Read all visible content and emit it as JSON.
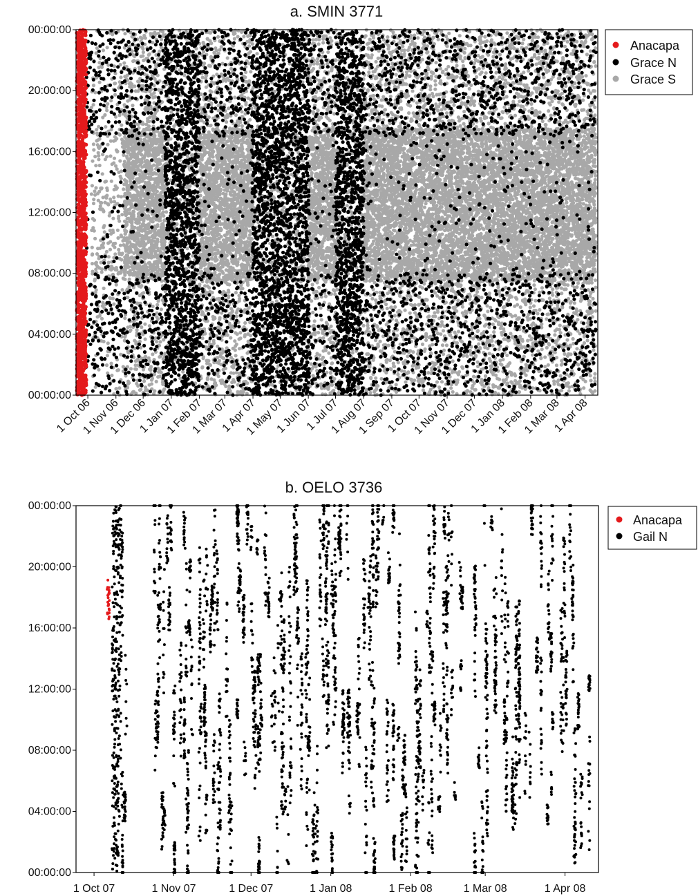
{
  "chart_data": [
    {
      "type": "scatter",
      "title": "a. SMIN 3771",
      "xlabel": "",
      "ylabel": "",
      "x_axis": {
        "type": "date",
        "ticks": [
          "1 Oct 06",
          "1 Nov 06",
          "1 Dec 06",
          "1 Jan 07",
          "1 Feb 07",
          "1 Mar 07",
          "1 Apr 07",
          "1 May 07",
          "1 Jun 07",
          "1 Jul 07",
          "1 Aug 07",
          "1 Sep 07",
          "1 Oct 07",
          "1 Nov 07",
          "1 Dec 07",
          "1 Jan 08",
          "1 Feb 08",
          "1 Mar 08",
          "1 Apr 08"
        ],
        "range": [
          "2006-09-18",
          "2008-04-15"
        ]
      },
      "y_axis": {
        "ticks": [
          "00:00:00",
          "04:00:00",
          "08:00:00",
          "12:00:00",
          "16:00:00",
          "20:00:00",
          "00:00:00"
        ],
        "range_hours": [
          0,
          24
        ]
      },
      "legend": {
        "placement": "right",
        "entries": [
          "Anacapa",
          "Grace N",
          "Grace S"
        ]
      },
      "grid": false,
      "series": [
        {
          "name": "Anacapa",
          "color": "#e41a1c",
          "x_range": [
            "2006-09-19",
            "2006-09-29"
          ],
          "hour_range": [
            0,
            24
          ]
        },
        {
          "name": "Grace N",
          "color": "#000000",
          "x_range": [
            "2006-09-29",
            "2008-04-12"
          ],
          "hour_range": [
            0,
            24
          ],
          "dense_periods": [
            [
              "2006-12-25",
              "2007-01-31"
            ],
            [
              "2007-03-31",
              "2007-06-01"
            ],
            [
              "2007-07-01",
              "2007-07-31"
            ]
          ]
        },
        {
          "name": "Grace S",
          "color": "#a8a8a8",
          "x_range": [
            "2006-10-05",
            "2008-04-12"
          ],
          "hour_range": [
            0,
            24
          ],
          "daytime_band_hours": [
            7.5,
            17.5
          ],
          "dense_periods": [
            [
              "2006-11-10",
              "2006-12-24"
            ],
            [
              "2007-02-01",
              "2007-03-31"
            ],
            [
              "2007-06-01",
              "2007-07-01"
            ],
            [
              "2007-08-01",
              "2008-04-12"
            ]
          ]
        }
      ]
    },
    {
      "type": "scatter",
      "title": "b. OELO 3736",
      "xlabel": "",
      "ylabel": "",
      "x_axis": {
        "type": "date",
        "ticks": [
          "1 Oct 07",
          "1 Nov 07",
          "1 Dec 07",
          "1 Jan 08",
          "1 Feb 08",
          "1 Mar 08",
          "1 Apr 08"
        ],
        "range": [
          "2007-09-24",
          "2008-04-14"
        ]
      },
      "y_axis": {
        "ticks": [
          "00:00:00",
          "04:00:00",
          "08:00:00",
          "12:00:00",
          "16:00:00",
          "20:00:00",
          "00:00:00"
        ],
        "range_hours": [
          0,
          24
        ]
      },
      "legend": {
        "placement": "right",
        "entries": [
          "Anacapa",
          "Gail N"
        ]
      },
      "grid": false,
      "series": [
        {
          "name": "Anacapa",
          "color": "#e41a1c",
          "x_range": [
            "2007-10-06",
            "2007-10-07"
          ],
          "hour_range": [
            16.3,
            19.2
          ]
        },
        {
          "name": "Gail N",
          "color": "#000000",
          "x_range": [
            "2007-10-08",
            "2008-04-12"
          ],
          "hour_range": [
            0,
            24
          ]
        }
      ]
    }
  ]
}
